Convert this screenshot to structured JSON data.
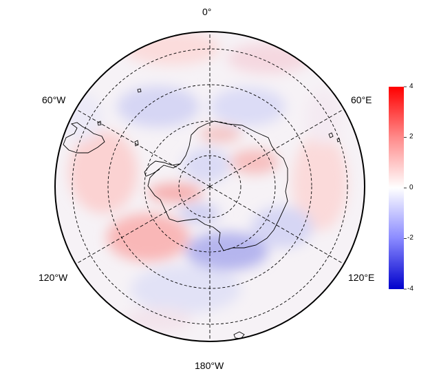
{
  "map": {
    "projection": "south-polar-stereographic",
    "longitude_labels": {
      "top": "0°",
      "upper_left": "60°W",
      "upper_right": "60°E",
      "lower_left": "120°W",
      "lower_right": "120°E",
      "bottom": "180°W"
    },
    "meridians_deg": [
      0,
      60,
      120,
      180,
      240,
      300
    ],
    "latitude_circles": 4,
    "coastline_color": "#000000",
    "gridline_color": "#000000"
  },
  "colorbar": {
    "ticks": [
      "4",
      "2",
      "0",
      "-2",
      "-4"
    ],
    "min": -4,
    "max": 4,
    "colors": {
      "high": "#ff0000",
      "mid": "#ffffff",
      "low": "#0000cc"
    }
  }
}
